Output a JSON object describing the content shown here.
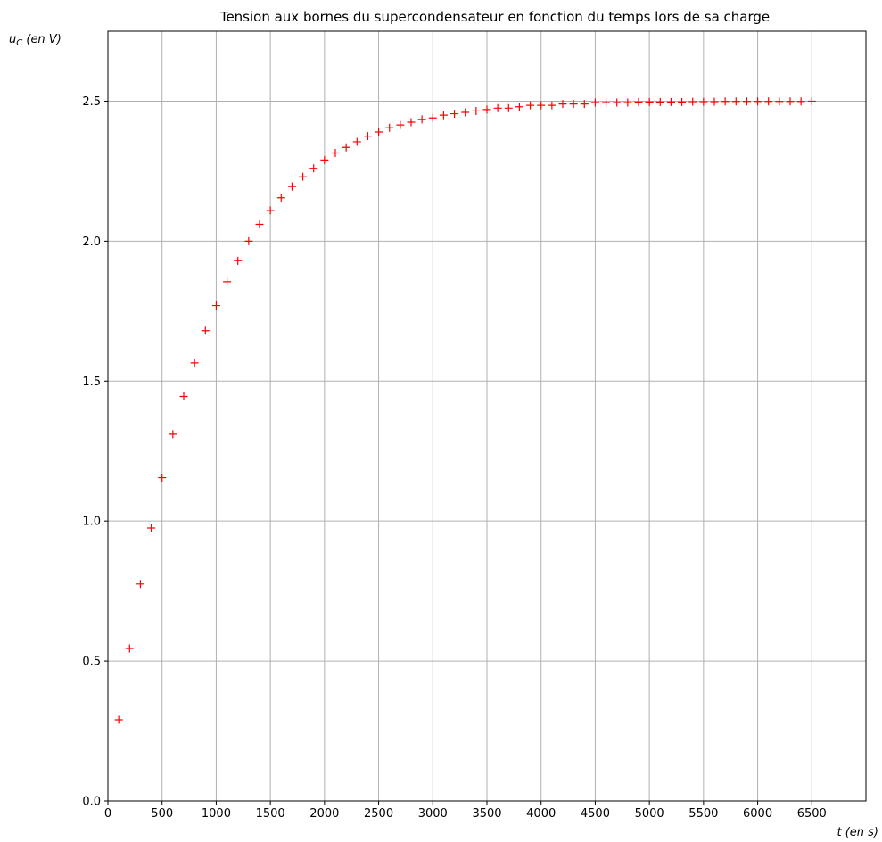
{
  "chart_data": {
    "type": "scatter",
    "title": "Tension aux bornes du supercondensateur en fonction du temps lors de sa charge",
    "ylabel": {
      "main": "u",
      "sub": "C",
      "rest": " (en V)"
    },
    "xlabel": "t (en s)",
    "xlim": [
      0,
      7000
    ],
    "ylim": [
      0,
      2.75
    ],
    "xticks": [
      0,
      500,
      1000,
      1500,
      2000,
      2500,
      3000,
      3500,
      4000,
      4500,
      5000,
      5500,
      6000,
      6500
    ],
    "yticks": [
      0.0,
      0.5,
      1.0,
      1.5,
      2.0,
      2.5
    ],
    "ytick_labels": [
      "0.0",
      "0.5",
      "1.0",
      "1.5",
      "2.0",
      "2.5"
    ],
    "grid": true,
    "marker": "+",
    "marker_color": "#ff0000",
    "x": [
      100,
      200,
      300,
      400,
      500,
      600,
      700,
      800,
      900,
      1000,
      1100,
      1200,
      1300,
      1400,
      1500,
      1600,
      1700,
      1800,
      1900,
      2000,
      2100,
      2200,
      2300,
      2400,
      2500,
      2600,
      2700,
      2800,
      2900,
      3000,
      3100,
      3200,
      3300,
      3400,
      3500,
      3600,
      3700,
      3800,
      3900,
      4000,
      4100,
      4200,
      4300,
      4400,
      4500,
      4600,
      4700,
      4800,
      4900,
      5000,
      5100,
      5200,
      5300,
      5400,
      5500,
      5600,
      5700,
      5800,
      5900,
      6000,
      6100,
      6200,
      6300,
      6400,
      6500
    ],
    "y": [
      0.29,
      0.545,
      0.775,
      0.975,
      1.155,
      1.31,
      1.445,
      1.565,
      1.68,
      1.77,
      1.855,
      1.93,
      2.0,
      2.06,
      2.11,
      2.155,
      2.195,
      2.23,
      2.26,
      2.29,
      2.315,
      2.335,
      2.355,
      2.375,
      2.39,
      2.405,
      2.415,
      2.425,
      2.435,
      2.44,
      2.45,
      2.455,
      2.46,
      2.465,
      2.47,
      2.475,
      2.475,
      2.48,
      2.485,
      2.485,
      2.485,
      2.49,
      2.49,
      2.49,
      2.495,
      2.495,
      2.495,
      2.495,
      2.497,
      2.497,
      2.497,
      2.497,
      2.497,
      2.498,
      2.498,
      2.498,
      2.499,
      2.499,
      2.499,
      2.499,
      2.499,
      2.499,
      2.499,
      2.499,
      2.5
    ]
  }
}
